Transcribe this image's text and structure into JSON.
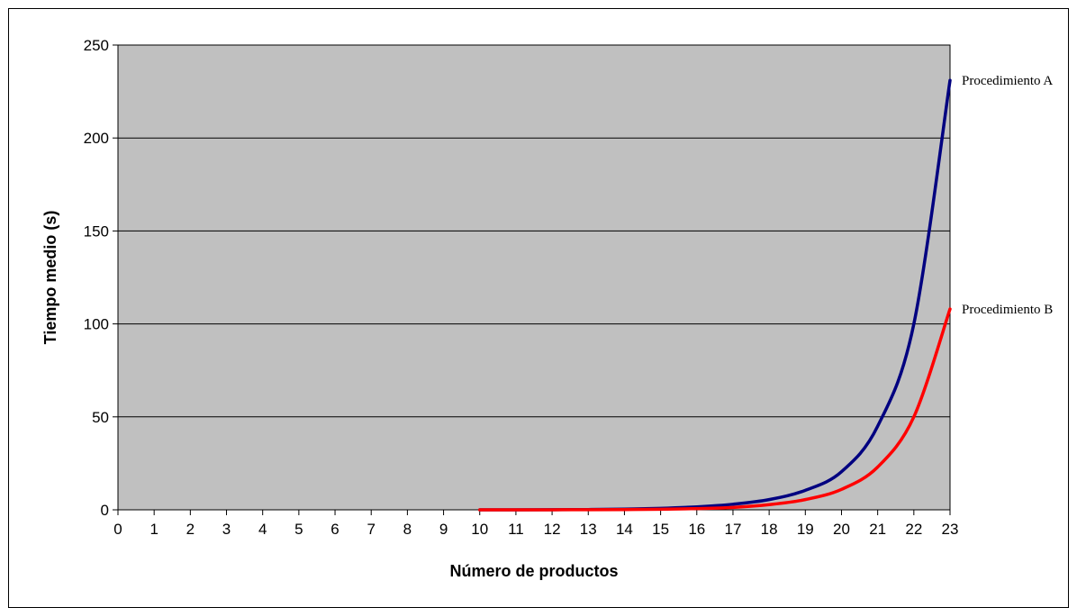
{
  "chart_data": {
    "type": "line",
    "xlabel": "Número de productos",
    "ylabel": "Tiempo medio (s)",
    "xlim": [
      0,
      23
    ],
    "ylim": [
      0,
      250
    ],
    "x_ticks": [
      0,
      1,
      2,
      3,
      4,
      5,
      6,
      7,
      8,
      9,
      10,
      11,
      12,
      13,
      14,
      15,
      16,
      17,
      18,
      19,
      20,
      21,
      22,
      23
    ],
    "y_ticks": [
      0,
      50,
      100,
      150,
      200,
      250
    ],
    "grid": "horizontal",
    "plot_background": "#c0c0c0",
    "series": [
      {
        "name": "Procedimiento A",
        "color": "#000080",
        "x": [
          10,
          11,
          12,
          13,
          14,
          15,
          16,
          17,
          18,
          19,
          20,
          21,
          22,
          23
        ],
        "values": [
          0.01,
          0.03,
          0.06,
          0.15,
          0.35,
          0.8,
          1.6,
          3.0,
          5.5,
          10.5,
          20.5,
          45,
          100,
          231
        ]
      },
      {
        "name": "Procedimiento B",
        "color": "#ff0000",
        "x": [
          10,
          11,
          12,
          13,
          14,
          15,
          16,
          17,
          18,
          19,
          20,
          21,
          22,
          23
        ],
        "values": [
          0.005,
          0.01,
          0.03,
          0.06,
          0.15,
          0.3,
          0.65,
          1.3,
          2.8,
          5.5,
          11,
          23,
          50,
          108
        ]
      }
    ]
  }
}
